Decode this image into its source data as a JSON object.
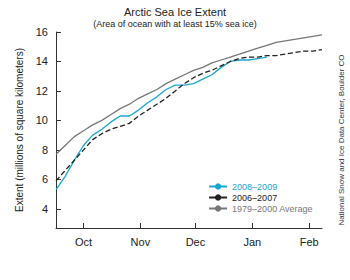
{
  "chart_data": {
    "type": "line",
    "title": "Arctic Sea Ice Extent",
    "subtitle": "(Area of ocean with at least 15% sea ice)",
    "ylabel": "Extent (millions of square kilometers)",
    "annotations": [
      "National Snow and Ice Data Center, Boulder CO"
    ],
    "x": [
      0,
      5,
      10,
      15,
      20,
      25,
      30,
      35,
      40,
      45,
      50,
      55,
      60,
      65,
      70,
      75,
      80,
      85,
      90,
      95,
      100,
      105,
      110,
      115,
      120,
      125,
      130,
      135,
      140,
      145
    ],
    "series": [
      {
        "name": "2008–2009",
        "color": "#1ba6d2",
        "line_style": "solid",
        "values": [
          5.3,
          6.2,
          7.3,
          8.3,
          9.0,
          9.4,
          9.9,
          10.3,
          10.3,
          10.7,
          11.2,
          11.6,
          12.1,
          12.4,
          12.4,
          12.5,
          12.8,
          13.1,
          13.6,
          14.0,
          14.1,
          14.1,
          14.2,
          14.3,
          null,
          null,
          null,
          null,
          null,
          null
        ]
      },
      {
        "name": "2006–2007",
        "color": "#222222",
        "line_style": "dashed",
        "values": [
          5.9,
          6.6,
          7.3,
          8.0,
          8.7,
          9.1,
          9.4,
          9.6,
          9.8,
          10.3,
          10.7,
          11.1,
          11.5,
          12.0,
          12.5,
          12.9,
          13.2,
          13.4,
          13.7,
          14.0,
          14.2,
          14.3,
          14.3,
          14.4,
          14.4,
          14.5,
          14.6,
          14.7,
          14.7,
          14.8
        ]
      },
      {
        "name": "1979–2000 Average",
        "color": "#777777",
        "line_style": "solid",
        "values": [
          7.7,
          8.3,
          8.9,
          9.3,
          9.7,
          10.0,
          10.4,
          10.8,
          11.1,
          11.5,
          11.8,
          12.1,
          12.5,
          12.8,
          13.1,
          13.4,
          13.6,
          13.9,
          14.1,
          14.3,
          14.5,
          14.7,
          14.9,
          15.1,
          15.3,
          15.4,
          15.5,
          15.6,
          15.7,
          15.8
        ]
      }
    ],
    "xlim": [
      0,
      145
    ],
    "xticks": [
      {
        "value": 15,
        "label": "Oct"
      },
      {
        "value": 46,
        "label": "Nov"
      },
      {
        "value": 76,
        "label": "Dec"
      },
      {
        "value": 107,
        "label": "Jan"
      },
      {
        "value": 138,
        "label": "Feb"
      }
    ],
    "ylim": [
      2.7,
      16
    ],
    "yticks": [
      4,
      6,
      8,
      10,
      12,
      14,
      16
    ],
    "grid": false,
    "legend": "lower right"
  }
}
